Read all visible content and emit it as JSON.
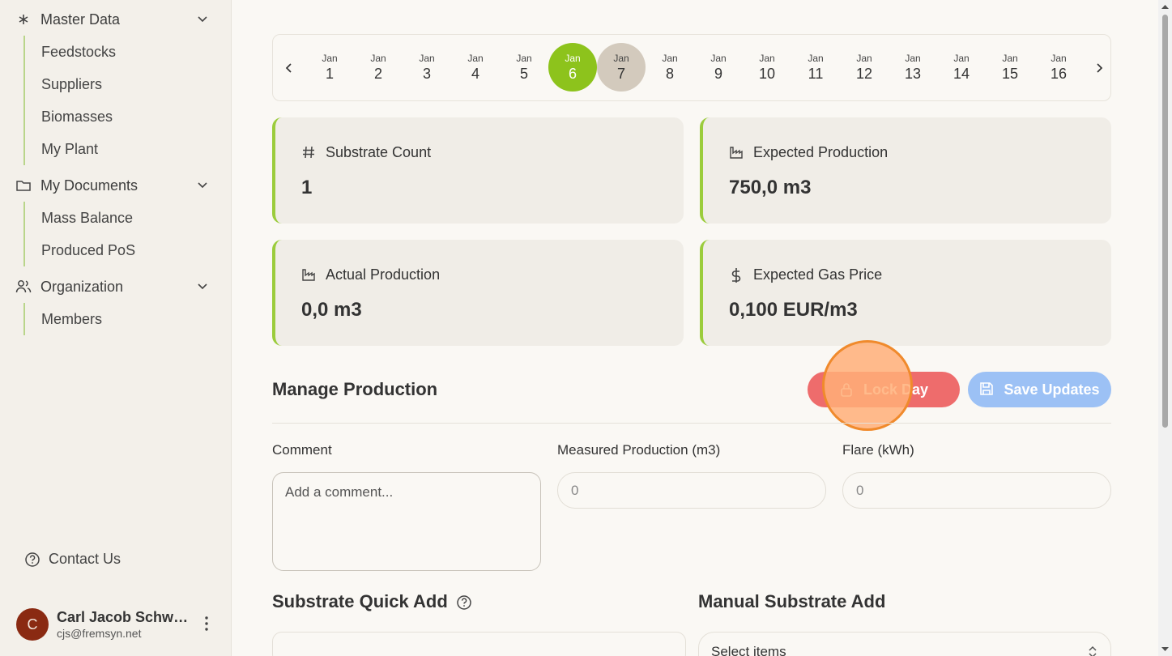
{
  "sidebar": {
    "groups": [
      {
        "label": "Master Data",
        "items": [
          "Feedstocks",
          "Suppliers",
          "Biomasses",
          "My Plant"
        ]
      },
      {
        "label": "My Documents",
        "items": [
          "Mass Balance",
          "Produced PoS"
        ]
      },
      {
        "label": "Organization",
        "items": [
          "Members"
        ]
      }
    ],
    "contact": "Contact Us",
    "user": {
      "initial": "C",
      "name": "Carl Jacob Schwar...",
      "email": "cjs@fremsyn.net"
    }
  },
  "dates": [
    {
      "month": "Jan",
      "day": "1"
    },
    {
      "month": "Jan",
      "day": "2"
    },
    {
      "month": "Jan",
      "day": "3"
    },
    {
      "month": "Jan",
      "day": "4"
    },
    {
      "month": "Jan",
      "day": "5"
    },
    {
      "month": "Jan",
      "day": "6"
    },
    {
      "month": "Jan",
      "day": "7"
    },
    {
      "month": "Jan",
      "day": "8"
    },
    {
      "month": "Jan",
      "day": "9"
    },
    {
      "month": "Jan",
      "day": "10"
    },
    {
      "month": "Jan",
      "day": "11"
    },
    {
      "month": "Jan",
      "day": "12"
    },
    {
      "month": "Jan",
      "day": "13"
    },
    {
      "month": "Jan",
      "day": "14"
    },
    {
      "month": "Jan",
      "day": "15"
    },
    {
      "month": "Jan",
      "day": "16"
    }
  ],
  "selected_day": "6",
  "today_day": "7",
  "cards": {
    "substrate_count": {
      "label": "Substrate Count",
      "value": "1"
    },
    "expected_production": {
      "label": "Expected Production",
      "value": "750,0 m3"
    },
    "actual_production": {
      "label": "Actual Production",
      "value": "0,0 m3"
    },
    "expected_gas_price": {
      "label": "Expected Gas Price",
      "value": "0,100 EUR/m3"
    }
  },
  "manage": {
    "title": "Manage Production",
    "lock_label": "Lock Day",
    "save_label": "Save Updates",
    "comment_label": "Comment",
    "comment_placeholder": "Add a comment...",
    "measured_label": "Measured Production (m3)",
    "measured_placeholder": "0",
    "flare_label": "Flare (kWh)",
    "flare_placeholder": "0"
  },
  "quick_add": {
    "title": "Substrate Quick Add"
  },
  "manual_add": {
    "title": "Manual Substrate Add",
    "select_placeholder": "Select items"
  },
  "colors": {
    "accent": "#8dc31c",
    "lock": "#ee6c6c",
    "save": "#9cc1f5",
    "today": "#d3cabd"
  }
}
